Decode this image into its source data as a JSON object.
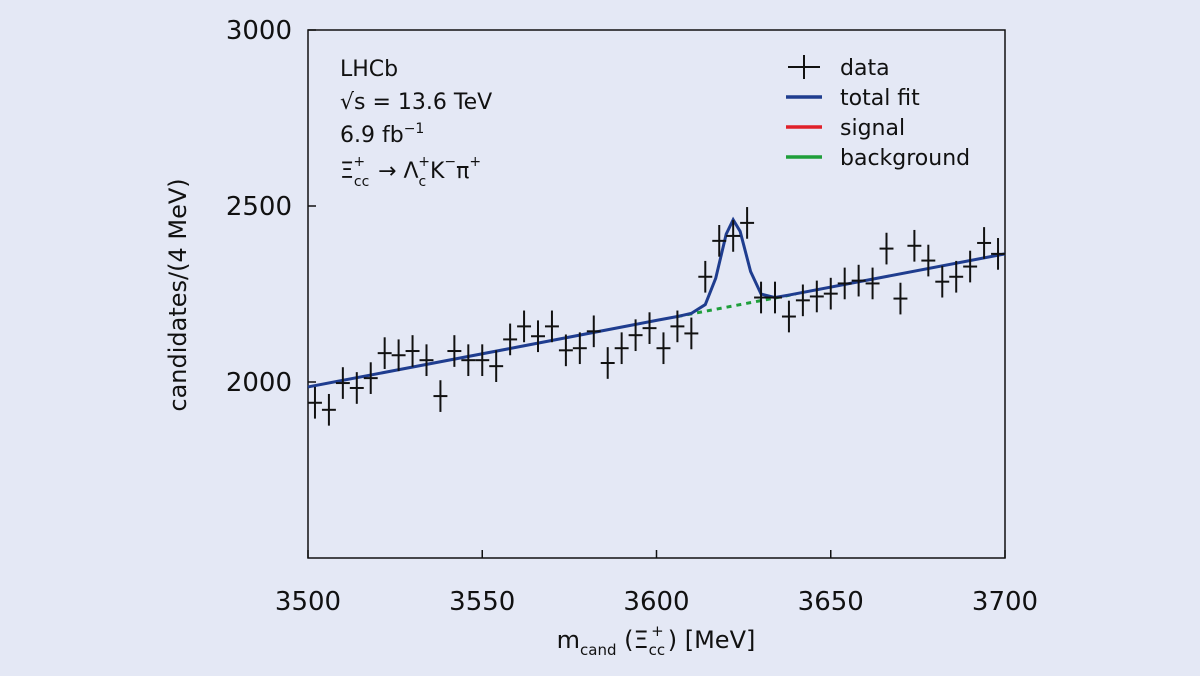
{
  "chart_data": {
    "type": "line",
    "annotations": [
      [
        "LHCb"
      ],
      [
        "√s = 13.6 TeV"
      ],
      [
        "6.9 fb",
        "−1"
      ],
      [
        "Ξ",
        "cc",
        "+",
        " → Λ",
        "c",
        "+",
        "K",
        "−",
        "π",
        "+"
      ]
    ],
    "xlabel": [
      "m",
      "cand",
      " (Ξ",
      "cc",
      "+",
      ") [MeV]"
    ],
    "ylabel": "candidates/(4 MeV)",
    "xlim": [
      3500,
      3700
    ],
    "ylim": [
      1500,
      3000
    ],
    "xticks": [
      3500,
      3550,
      3600,
      3650,
      3700
    ],
    "yticks": [
      2000,
      2500,
      3000
    ],
    "legend": "upper right",
    "series": [
      {
        "name": "data",
        "color": "#111111",
        "style": "errorbar",
        "x": [
          3502,
          3506,
          3510,
          3514,
          3518,
          3522,
          3526,
          3530,
          3534,
          3538,
          3542,
          3546,
          3550,
          3554,
          3558,
          3562,
          3566,
          3570,
          3574,
          3578,
          3582,
          3586,
          3590,
          3594,
          3598,
          3602,
          3606,
          3610,
          3614,
          3618,
          3622,
          3626,
          3630,
          3634,
          3638,
          3642,
          3646,
          3650,
          3654,
          3658,
          3662,
          3666,
          3670,
          3674,
          3678,
          3682,
          3686,
          3690,
          3694,
          3698
        ],
        "values": [
          1941,
          1921,
          1997,
          1983,
          2011,
          2082,
          2076,
          2088,
          2062,
          1960,
          2088,
          2062,
          2062,
          2045,
          2121,
          2158,
          2130,
          2158,
          2090,
          2096,
          2144,
          2054,
          2096,
          2133,
          2153,
          2096,
          2158,
          2138,
          2299,
          2401,
          2415,
          2452,
          2240,
          2240,
          2186,
          2232,
          2243,
          2251,
          2280,
          2288,
          2280,
          2379,
          2237,
          2387,
          2345,
          2285,
          2299,
          2328,
          2395,
          2364
        ],
        "errors": [
          45,
          45,
          45,
          45,
          45,
          45,
          45,
          45,
          45,
          45,
          45,
          45,
          45,
          45,
          45,
          45,
          45,
          45,
          45,
          45,
          45,
          45,
          45,
          45,
          45,
          45,
          45,
          45,
          45,
          45,
          45,
          45,
          45,
          45,
          45,
          45,
          45,
          45,
          45,
          45,
          45,
          45,
          45,
          45,
          45,
          45,
          45,
          45,
          45,
          45
        ]
      },
      {
        "name": "total fit",
        "color": "#1f3d8f",
        "style": "solid",
        "x": [
          3500,
          3560,
          3600,
          3606,
          3610,
          3614,
          3617,
          3620,
          3622,
          3624,
          3627,
          3630,
          3634,
          3638,
          3700
        ],
        "values": [
          1986,
          2099,
          2175,
          2186,
          2195,
          2220,
          2295,
          2420,
          2461,
          2428,
          2314,
          2250,
          2240,
          2247,
          2364
        ]
      },
      {
        "name": "signal",
        "color": "#e0202a",
        "style": "solid",
        "x": [],
        "values": []
      },
      {
        "name": "background",
        "color": "#1e9e3a",
        "style": "dashed",
        "x": [
          3606,
          3640
        ],
        "values": [
          2186,
          2250
        ]
      }
    ]
  }
}
